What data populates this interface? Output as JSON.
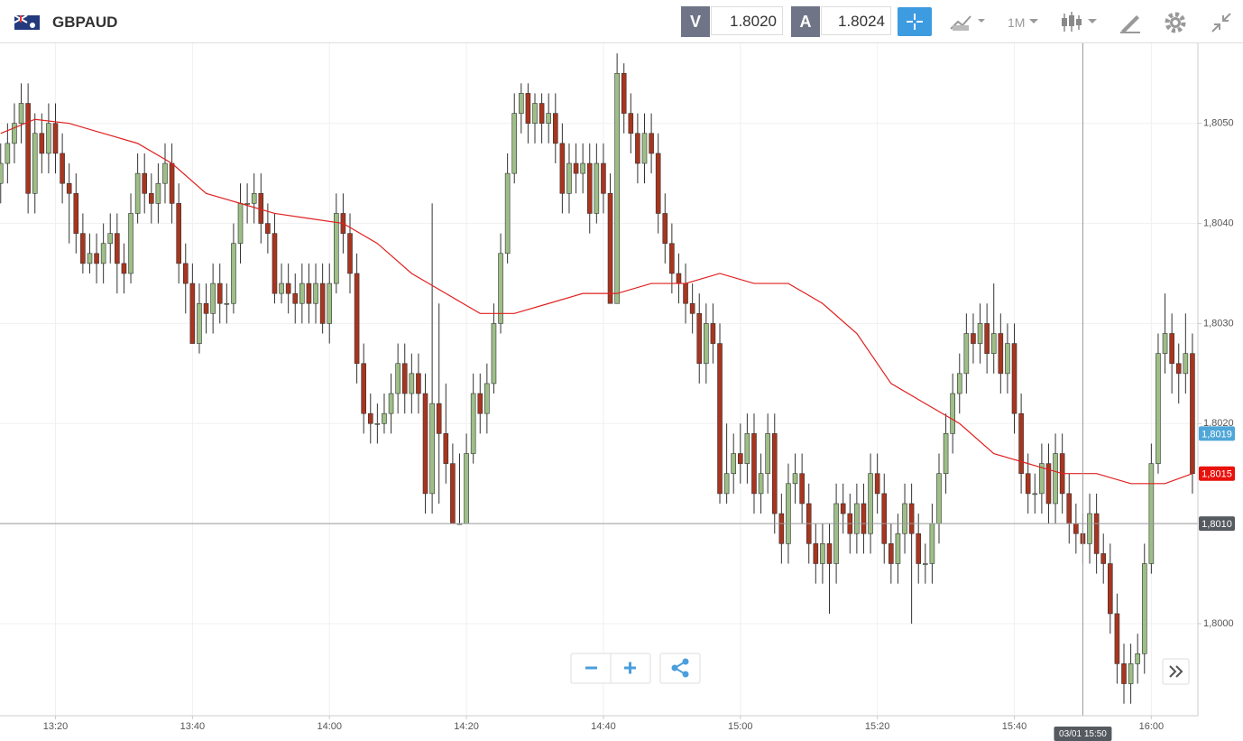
{
  "toolbar": {
    "symbol": "GBPAUD",
    "sell_label": "V",
    "sell_price": "1.8020",
    "buy_label": "A",
    "buy_price": "1.8024",
    "timeframe": "1M"
  },
  "chart_data": {
    "type": "candlestick",
    "x": [
      792,
      793,
      794,
      795,
      796,
      797,
      798,
      799,
      800,
      801,
      802,
      803,
      804,
      805,
      806,
      807,
      808,
      809,
      810,
      811,
      812,
      813,
      814,
      815,
      816,
      817,
      818,
      819,
      820,
      821,
      822,
      823,
      824,
      825,
      826,
      827,
      828,
      829,
      830,
      831,
      832,
      833,
      834,
      835,
      836,
      837,
      838,
      839,
      840,
      841,
      842,
      843,
      844,
      845,
      846,
      847,
      848,
      849,
      850,
      851,
      852,
      853,
      854,
      855,
      856,
      857,
      858,
      859,
      860,
      861,
      862,
      863,
      864,
      865,
      866,
      867,
      868,
      869,
      870,
      871,
      872,
      873,
      874,
      875,
      876,
      877,
      878,
      879,
      880,
      881,
      882,
      883,
      884,
      885,
      886,
      887,
      888,
      889,
      890,
      891,
      892,
      893,
      894,
      895,
      896,
      897,
      898,
      899,
      900,
      901,
      902,
      903,
      904,
      905,
      906,
      907,
      908,
      909,
      910,
      911,
      912,
      913,
      914,
      915,
      916,
      917,
      918,
      919,
      920,
      921,
      922,
      923,
      924,
      925,
      926,
      927,
      928,
      929,
      930,
      931,
      932,
      933,
      934,
      935,
      936,
      937,
      938,
      939,
      940,
      941,
      942,
      943,
      944,
      945,
      946,
      947,
      948,
      949,
      950,
      951,
      952,
      953,
      954,
      955,
      956,
      957,
      958,
      959,
      960,
      961,
      962,
      963,
      964,
      965,
      966
    ],
    "open": [
      1.8044,
      1.8046,
      1.8048,
      1.805,
      1.8052,
      1.8043,
      1.8049,
      1.8047,
      1.805,
      1.8047,
      1.8044,
      1.8043,
      1.8039,
      1.8036,
      1.8037,
      1.8036,
      1.8038,
      1.8039,
      1.8036,
      1.8035,
      1.8041,
      1.8045,
      1.8043,
      1.8042,
      1.8044,
      1.8046,
      1.8042,
      1.8036,
      1.8034,
      1.8028,
      1.8032,
      1.8031,
      1.8034,
      1.8032,
      1.8032,
      1.8038,
      1.8042,
      1.8042,
      1.8043,
      1.804,
      1.8039,
      1.8033,
      1.8034,
      1.8033,
      1.8032,
      1.8034,
      1.8032,
      1.8034,
      1.803,
      1.8034,
      1.8041,
      1.8039,
      1.8035,
      1.8026,
      1.8021,
      1.802,
      1.802,
      1.8021,
      1.8023,
      1.8026,
      1.8023,
      1.8025,
      1.8023,
      1.8013,
      1.8022,
      1.8019,
      1.8016,
      1.801,
      1.801,
      1.8017,
      1.8023,
      1.8021,
      1.8024,
      1.803,
      1.8037,
      1.8045,
      1.8051,
      1.8053,
      1.805,
      1.8052,
      1.805,
      1.8051,
      1.8048,
      1.8043,
      1.8046,
      1.8045,
      1.8046,
      1.8041,
      1.8046,
      1.8043,
      1.8032,
      1.8055,
      1.8051,
      1.8049,
      1.8046,
      1.8049,
      1.8047,
      1.8041,
      1.8038,
      1.8035,
      1.8034,
      1.8032,
      1.8031,
      1.8026,
      1.803,
      1.8028,
      1.8013,
      1.8015,
      1.8017,
      1.8016,
      1.8019,
      1.8013,
      1.8015,
      1.8019,
      1.8011,
      1.8008,
      1.8014,
      1.8015,
      1.8012,
      1.8008,
      1.8006,
      1.8008,
      1.8006,
      1.8012,
      1.8011,
      1.8009,
      1.8012,
      1.8009,
      1.8015,
      1.8013,
      1.8008,
      1.8006,
      1.8009,
      1.8012,
      1.8009,
      1.8006,
      1.8006,
      1.801,
      1.8015,
      1.8019,
      1.8023,
      1.8025,
      1.8029,
      1.8028,
      1.803,
      1.8027,
      1.8029,
      1.8025,
      1.8028,
      1.8021,
      1.8015,
      1.8013,
      1.8013,
      1.8016,
      1.8012,
      1.8017,
      1.8013,
      1.801,
      1.8009,
      1.8008,
      1.8011,
      1.8007,
      1.8006,
      1.8001,
      1.7996,
      1.7994,
      1.7996,
      1.7997,
      1.8006,
      1.8016,
      1.8027,
      1.8029,
      1.8026,
      1.8025,
      1.8027
    ],
    "high": [
      1.8048,
      1.805,
      1.8052,
      1.8054,
      1.8054,
      1.8051,
      1.8051,
      1.8052,
      1.8052,
      1.8049,
      1.8046,
      1.8045,
      1.8041,
      1.8039,
      1.8039,
      1.804,
      1.8041,
      1.8041,
      1.8038,
      1.8043,
      1.8047,
      1.8047,
      1.8045,
      1.8046,
      1.8048,
      1.8048,
      1.8044,
      1.8038,
      1.8036,
      1.8034,
      1.8034,
      1.8036,
      1.8036,
      1.8034,
      1.804,
      1.8044,
      1.8044,
      1.8045,
      1.8045,
      1.8042,
      1.8041,
      1.8036,
      1.8036,
      1.8035,
      1.8036,
      1.8036,
      1.8036,
      1.8036,
      1.8036,
      1.8043,
      1.8043,
      1.8041,
      1.8037,
      1.8028,
      1.8023,
      1.8022,
      1.8023,
      1.8025,
      1.8028,
      1.8028,
      1.8027,
      1.8027,
      1.8025,
      1.8042,
      1.8032,
      1.8024,
      1.8018,
      1.8017,
      1.8019,
      1.8025,
      1.8025,
      1.8026,
      1.8032,
      1.8039,
      1.8047,
      1.8053,
      1.8054,
      1.8054,
      1.8053,
      1.8053,
      1.8053,
      1.8053,
      1.805,
      1.8048,
      1.8048,
      1.8048,
      1.8048,
      1.8048,
      1.8048,
      1.8045,
      1.8057,
      1.8056,
      1.8053,
      1.8051,
      1.8051,
      1.8051,
      1.8049,
      1.8043,
      1.804,
      1.8037,
      1.8036,
      1.8034,
      1.8033,
      1.8032,
      1.8032,
      1.803,
      1.802,
      1.8019,
      1.802,
      1.8021,
      1.8021,
      1.8017,
      1.8021,
      1.8021,
      1.8013,
      1.8016,
      1.8017,
      1.8017,
      1.8014,
      1.801,
      1.801,
      1.801,
      1.8014,
      1.8014,
      1.8013,
      1.8014,
      1.8014,
      1.8017,
      1.8017,
      1.8015,
      1.801,
      1.8011,
      1.8014,
      1.8014,
      1.8011,
      1.8008,
      1.8012,
      1.8017,
      1.8021,
      1.8025,
      1.8027,
      1.8031,
      1.8031,
      1.8032,
      1.8032,
      1.8034,
      1.8031,
      1.803,
      1.803,
      1.8023,
      1.8017,
      1.8015,
      1.8018,
      1.8018,
      1.8019,
      1.8019,
      1.8015,
      1.8012,
      1.8011,
      1.8013,
      1.8013,
      1.8009,
      1.8008,
      1.8003,
      1.7998,
      1.7998,
      1.7999,
      1.8008,
      1.8018,
      1.8029,
      1.8033,
      1.8031,
      1.8028,
      1.8031,
      1.8029
    ],
    "low": [
      1.8042,
      1.8044,
      1.8046,
      1.8048,
      1.8041,
      1.8041,
      1.8045,
      1.8045,
      1.8045,
      1.8042,
      1.8038,
      1.8037,
      1.8035,
      1.8035,
      1.8034,
      1.8034,
      1.8036,
      1.8033,
      1.8033,
      1.8034,
      1.804,
      1.8041,
      1.804,
      1.804,
      1.8042,
      1.804,
      1.8034,
      1.8031,
      1.8028,
      1.8027,
      1.8029,
      1.8029,
      1.803,
      1.803,
      1.8031,
      1.8036,
      1.804,
      1.804,
      1.8038,
      1.8037,
      1.8032,
      1.8032,
      1.8031,
      1.803,
      1.803,
      1.803,
      1.803,
      1.8029,
      1.8028,
      1.8033,
      1.8037,
      1.8033,
      1.8024,
      1.8019,
      1.8018,
      1.8018,
      1.8019,
      1.8019,
      1.8021,
      1.8021,
      1.8021,
      1.8021,
      1.8011,
      1.8011,
      1.8012,
      1.8014,
      1.801,
      1.801,
      1.801,
      1.8016,
      1.8019,
      1.8019,
      1.8023,
      1.8029,
      1.8036,
      1.8044,
      1.8049,
      1.8048,
      1.8048,
      1.8048,
      1.8048,
      1.8046,
      1.8041,
      1.8041,
      1.8043,
      1.8043,
      1.8039,
      1.804,
      1.8041,
      1.8032,
      1.8032,
      1.8049,
      1.8047,
      1.8044,
      1.8044,
      1.8045,
      1.8039,
      1.8036,
      1.8033,
      1.8032,
      1.803,
      1.8029,
      1.8024,
      1.8024,
      1.8026,
      1.8012,
      1.8012,
      1.8013,
      1.8014,
      1.8014,
      1.8011,
      1.8011,
      1.8013,
      1.8009,
      1.8006,
      1.8006,
      1.8012,
      1.801,
      1.8006,
      1.8004,
      1.8004,
      1.8001,
      1.8004,
      1.8009,
      1.8007,
      1.8007,
      1.8007,
      1.8007,
      1.8011,
      1.8006,
      1.8004,
      1.8004,
      1.8007,
      1.8,
      1.8004,
      1.8004,
      1.8004,
      1.8008,
      1.8013,
      1.8017,
      1.8021,
      1.8023,
      1.8026,
      1.8026,
      1.8025,
      1.8025,
      1.8023,
      1.8023,
      1.8019,
      1.8013,
      1.8011,
      1.8011,
      1.8011,
      1.801,
      1.801,
      1.8011,
      1.8008,
      1.8007,
      1.8006,
      1.8006,
      1.8005,
      1.8004,
      1.7999,
      1.7994,
      1.7992,
      1.7992,
      1.7994,
      1.7995,
      1.8005,
      1.8015,
      1.8025,
      1.8023,
      1.8022,
      1.8023,
      1.8013
    ],
    "close": [
      1.8046,
      1.8048,
      1.805,
      1.8052,
      1.8043,
      1.8049,
      1.8047,
      1.805,
      1.8047,
      1.8044,
      1.8043,
      1.8039,
      1.8036,
      1.8037,
      1.8036,
      1.8038,
      1.8039,
      1.8036,
      1.8035,
      1.8041,
      1.8045,
      1.8043,
      1.8042,
      1.8044,
      1.8046,
      1.8042,
      1.8036,
      1.8034,
      1.8028,
      1.8032,
      1.8031,
      1.8034,
      1.8032,
      1.8032,
      1.8038,
      1.8042,
      1.8042,
      1.8043,
      1.804,
      1.8039,
      1.8033,
      1.8034,
      1.8033,
      1.8032,
      1.8034,
      1.8032,
      1.8034,
      1.803,
      1.8034,
      1.8041,
      1.8039,
      1.8035,
      1.8026,
      1.8021,
      1.802,
      1.802,
      1.8021,
      1.8023,
      1.8026,
      1.8023,
      1.8025,
      1.8023,
      1.8013,
      1.8022,
      1.8019,
      1.8016,
      1.801,
      1.801,
      1.8017,
      1.8023,
      1.8021,
      1.8024,
      1.803,
      1.8037,
      1.8045,
      1.8051,
      1.8053,
      1.805,
      1.8052,
      1.805,
      1.8051,
      1.8048,
      1.8043,
      1.8046,
      1.8045,
      1.8046,
      1.8041,
      1.8046,
      1.8043,
      1.8032,
      1.8055,
      1.8051,
      1.8049,
      1.8046,
      1.8049,
      1.8047,
      1.8041,
      1.8038,
      1.8035,
      1.8034,
      1.8032,
      1.8031,
      1.8026,
      1.803,
      1.8028,
      1.8013,
      1.8015,
      1.8017,
      1.8016,
      1.8019,
      1.8013,
      1.8015,
      1.8019,
      1.8011,
      1.8008,
      1.8014,
      1.8015,
      1.8012,
      1.8008,
      1.8006,
      1.8008,
      1.8006,
      1.8012,
      1.8011,
      1.8009,
      1.8012,
      1.8009,
      1.8015,
      1.8013,
      1.8008,
      1.8006,
      1.8009,
      1.8012,
      1.8009,
      1.8006,
      1.8006,
      1.801,
      1.8015,
      1.8019,
      1.8023,
      1.8025,
      1.8029,
      1.8028,
      1.803,
      1.8027,
      1.8029,
      1.8025,
      1.8028,
      1.8021,
      1.8015,
      1.8013,
      1.8013,
      1.8016,
      1.8012,
      1.8017,
      1.8013,
      1.801,
      1.8009,
      1.8008,
      1.8011,
      1.8007,
      1.8006,
      1.8001,
      1.7996,
      1.7994,
      1.7996,
      1.7997,
      1.8006,
      1.8016,
      1.8027,
      1.8029,
      1.8026,
      1.8025,
      1.8027,
      1.8015
    ],
    "up_color": "#9dbf87",
    "down_color": "#a8351f",
    "moving_average": {
      "color": "#e02020",
      "x": [
        792,
        797,
        802,
        807,
        812,
        817,
        822,
        827,
        832,
        837,
        842,
        847,
        852,
        857,
        862,
        867,
        872,
        877,
        882,
        887,
        892,
        897,
        902,
        907,
        912,
        917,
        922,
        927,
        932,
        937,
        942,
        947,
        952,
        957,
        962,
        966
      ],
      "values": [
        1.8049,
        1.80504,
        1.805,
        1.8049,
        1.8048,
        1.8046,
        1.8043,
        1.8042,
        1.8041,
        1.80405,
        1.804,
        1.8038,
        1.8035,
        1.8033,
        1.8031,
        1.8031,
        1.8032,
        1.8033,
        1.8033,
        1.8034,
        1.8034,
        1.8035,
        1.8034,
        1.8034,
        1.8032,
        1.8029,
        1.8024,
        1.8022,
        1.802,
        1.8017,
        1.8016,
        1.8015,
        1.8015,
        1.8014,
        1.8014,
        1.8015
      ]
    },
    "xlim": [
      791.9,
      966.8
    ],
    "ylim": [
      1.79908,
      1.8058
    ],
    "xticks": [
      {
        "value": 800,
        "label": "13:20"
      },
      {
        "value": 820,
        "label": "13:40"
      },
      {
        "value": 840,
        "label": "14:00"
      },
      {
        "value": 860,
        "label": "14:20"
      },
      {
        "value": 880,
        "label": "14:40"
      },
      {
        "value": 900,
        "label": "15:00"
      },
      {
        "value": 920,
        "label": "15:20"
      },
      {
        "value": 940,
        "label": "15:40"
      },
      {
        "value": 960,
        "label": "16:00"
      }
    ],
    "yticks": [
      {
        "value": 1.8,
        "label": "1,8000"
      },
      {
        "value": 1.802,
        "label": "1,8020"
      },
      {
        "value": 1.803,
        "label": "1,8030"
      },
      {
        "value": 1.804,
        "label": "1,8040"
      },
      {
        "value": 1.805,
        "label": "1,8050"
      }
    ],
    "grid": true,
    "price_markers": [
      {
        "value": 1.8019,
        "label": "1,8019",
        "color": "#4fa6d8"
      },
      {
        "value": 1.8015,
        "label": "1,8015",
        "color": "#e8110c"
      },
      {
        "value": 1.801,
        "label": "1,8010",
        "color": "#555a60",
        "line": true
      }
    ],
    "crosshair": {
      "x": 950,
      "label": "03/01 15:50"
    }
  }
}
